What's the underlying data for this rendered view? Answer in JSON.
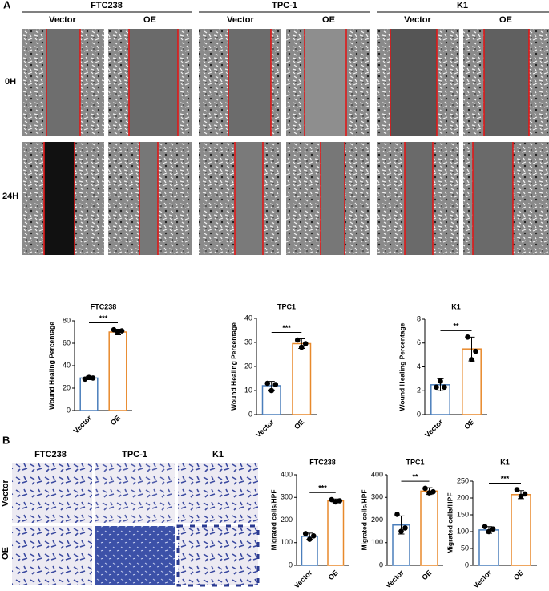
{
  "panel_a": {
    "label": "A",
    "groups": [
      {
        "name": "FTC238",
        "columns": [
          "Vector",
          "OE"
        ]
      },
      {
        "name": "TPC-1",
        "columns": [
          "Vector",
          "OE"
        ]
      },
      {
        "name": "K1",
        "columns": [
          "Vector",
          "OE"
        ]
      }
    ],
    "rows": [
      "0H",
      "24H"
    ]
  },
  "panel_b": {
    "label": "B",
    "columns": [
      "FTC238",
      "TPC-1",
      "K1"
    ],
    "rows": [
      "Vector",
      "OE"
    ]
  },
  "chart_data": [
    {
      "type": "bar",
      "title": "FTC238",
      "y_label": "Wound Healing Percentage",
      "categories": [
        "Vector",
        "OE"
      ],
      "values": [
        29,
        70
      ],
      "errors": [
        1.5,
        2.5
      ],
      "points": [
        [
          28,
          29.5,
          29
        ],
        [
          72,
          70,
          71
        ]
      ],
      "colors": [
        "#4a7ebb",
        "#e8892b"
      ],
      "ylim": [
        0,
        80
      ],
      "yticks": [
        0,
        20,
        40,
        60,
        80
      ],
      "annotation": "***"
    },
    {
      "type": "bar",
      "title": "TPC1",
      "y_label": "Wound Healing Percentage",
      "categories": [
        "Vector",
        "OE"
      ],
      "values": [
        12,
        29.5
      ],
      "errors": [
        1.8,
        2
      ],
      "points": [
        [
          13,
          10,
          12.5
        ],
        [
          31,
          28,
          29.5
        ]
      ],
      "colors": [
        "#4a7ebb",
        "#e8892b"
      ],
      "ylim": [
        0,
        40
      ],
      "yticks": [
        0,
        10,
        20,
        30,
        40
      ],
      "annotation": "***"
    },
    {
      "type": "bar",
      "title": "K1",
      "y_label": "Wound Healing Percentage",
      "categories": [
        "Vector",
        "OE"
      ],
      "values": [
        2.5,
        5.5
      ],
      "errors": [
        0.5,
        1
      ],
      "points": [
        [
          2.3,
          2.8,
          2.3
        ],
        [
          6.5,
          4.6,
          5.3
        ]
      ],
      "colors": [
        "#4a7ebb",
        "#e8892b"
      ],
      "ylim": [
        0,
        8
      ],
      "yticks": [
        0,
        2,
        4,
        6,
        8
      ],
      "annotation": "**"
    },
    {
      "type": "bar",
      "title": "FTC238",
      "y_label": "Migrated cells/HPF",
      "categories": [
        "Vector",
        "OE"
      ],
      "values": [
        128,
        285
      ],
      "errors": [
        14,
        8
      ],
      "points": [
        [
          140,
          115,
          130
        ],
        [
          290,
          280,
          285
        ]
      ],
      "colors": [
        "#4a7ebb",
        "#e8892b"
      ],
      "ylim": [
        0,
        400
      ],
      "yticks": [
        0,
        100,
        200,
        300,
        400
      ],
      "annotation": "***"
    },
    {
      "type": "bar",
      "title": "TPC1",
      "y_label": "Migrated cells/HPF",
      "categories": [
        "Vector",
        "OE"
      ],
      "values": [
        178,
        328
      ],
      "errors": [
        40,
        15
      ],
      "points": [
        [
          225,
          150,
          165
        ],
        [
          340,
          320,
          325
        ]
      ],
      "colors": [
        "#4a7ebb",
        "#e8892b"
      ],
      "ylim": [
        0,
        400
      ],
      "yticks": [
        0,
        100,
        200,
        300,
        400
      ],
      "annotation": "**"
    },
    {
      "type": "bar",
      "title": "K1",
      "y_label": "Migrated cells/HPF",
      "categories": [
        "Vector",
        "OE"
      ],
      "values": [
        105,
        210
      ],
      "errors": [
        10,
        12
      ],
      "points": [
        [
          115,
          100,
          108
        ],
        [
          225,
          205,
          212
        ]
      ],
      "colors": [
        "#4a7ebb",
        "#e8892b"
      ],
      "ylim": [
        0,
        250
      ],
      "yticks": [
        0,
        50,
        100,
        150,
        200,
        250
      ],
      "annotation": "***"
    }
  ]
}
